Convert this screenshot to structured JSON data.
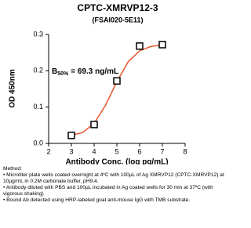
{
  "chart_data": {
    "type": "scatter",
    "title": "CPTC-XMRVP12-3",
    "subtitle": "(FSAI020-5E11)",
    "x_label": "Antibody Conc. (log pg/mL)",
    "y_label": "OD 450nm",
    "annotation": {
      "text": "B",
      "subscript": "50%",
      "rest": "= 69.3 ng/mL"
    },
    "x": [
      3,
      4,
      5,
      6,
      7
    ],
    "values": [
      0.022,
      0.052,
      0.172,
      0.268,
      0.272
    ],
    "marker_color": "#000000",
    "fit": {
      "color": "#e8562a",
      "x": [
        3,
        3.5,
        4,
        4.5,
        5,
        5.5,
        6,
        6.5,
        7
      ],
      "values": [
        0.022,
        0.03,
        0.055,
        0.105,
        0.17,
        0.225,
        0.255,
        0.267,
        0.271
      ]
    },
    "xlim": [
      2,
      8
    ],
    "xticks": [
      2,
      3,
      4,
      5,
      6,
      7,
      8
    ],
    "ylim": [
      0,
      0.3
    ],
    "yticks": [
      {
        "value": 0,
        "label": "0.0"
      },
      0.1,
      0.2,
      0.3
    ],
    "grid": false
  },
  "method": {
    "title": "Method:",
    "items": [
      "• Microtiter plate wells coated overnight at 4ºC with 100µL of Ag XMRVP12 (CPTC-XMRVP12) at 10µg/mL in 0.2M carbonate buffer, pH9.4.",
      "• Antibody diluted with PBS and 100µL incubated in Ag coated wells for 30 min at 37ºC (with vigorous shaking)",
      "• Bound Ab detected using HRP-labeled goat anti-mouse IgG with TMB substrate."
    ]
  }
}
